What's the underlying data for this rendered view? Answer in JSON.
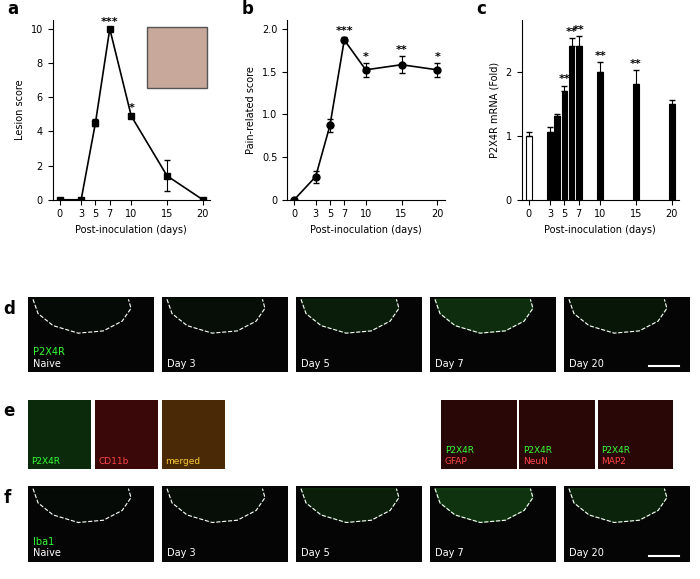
{
  "chart_data": [
    {
      "type": "line",
      "panel": "a",
      "x": [
        0,
        3,
        5,
        7,
        10,
        15,
        20
      ],
      "values": [
        0,
        0,
        4.5,
        10,
        4.9,
        1.4,
        0
      ],
      "errors": [
        0,
        0,
        0.2,
        0,
        0.1,
        0.9,
        0
      ],
      "significance": [
        null,
        null,
        null,
        "***",
        "*",
        null,
        null
      ],
      "color": "#000000",
      "marker": "square",
      "xlabel": "Post-inoculation (days)",
      "ylabel": "Lesion score",
      "xlim": [
        -1,
        21
      ],
      "xticks": [
        0,
        3,
        5,
        7,
        10,
        15,
        20
      ],
      "ylim": [
        0,
        10.5
      ],
      "yticks": [
        0,
        2,
        4,
        6,
        8,
        10
      ]
    },
    {
      "type": "line",
      "panel": "b",
      "x": [
        0,
        3,
        5,
        7,
        10,
        15,
        20
      ],
      "values": [
        0,
        0.27,
        0.87,
        1.87,
        1.52,
        1.58,
        1.52
      ],
      "errors": [
        0,
        0.07,
        0.08,
        0.03,
        0.08,
        0.1,
        0.08
      ],
      "significance": [
        null,
        null,
        null,
        "***",
        "*",
        "**",
        "*"
      ],
      "color": "#000000",
      "marker": "circle",
      "xlabel": "Post-inoculation (days)",
      "ylabel": "Pain-related score",
      "xlim": [
        -1,
        21
      ],
      "xticks": [
        0,
        3,
        5,
        7,
        10,
        15,
        20
      ],
      "ylim": [
        0,
        2.1
      ],
      "yticks": [
        0,
        0.5,
        {
          "value": 1.0,
          "label": "1.0"
        },
        1.5,
        {
          "value": 2.0,
          "label": "2.0"
        }
      ]
    },
    {
      "type": "bar",
      "panel": "c",
      "x": [
        0,
        3,
        4,
        5,
        6,
        7,
        10,
        15,
        20
      ],
      "values": [
        1.0,
        1.05,
        1.3,
        1.7,
        2.4,
        2.4,
        2.0,
        1.8,
        1.5
      ],
      "errors": [
        0.05,
        0.08,
        0.03,
        0.08,
        0.12,
        0.15,
        0.15,
        0.22,
        0.05
      ],
      "significance": [
        null,
        null,
        null,
        "**",
        "**",
        "**",
        "**",
        "**",
        null
      ],
      "colors": [
        "#ffffff",
        "#000000",
        "#000000",
        "#000000",
        "#000000",
        "#000000",
        "#000000",
        "#000000",
        "#000000"
      ],
      "xlabel": "Post-inoculation (days)",
      "ylabel": "P2X4R mRNA (Fold)",
      "xlim": [
        -1,
        21
      ],
      "xticks": [
        0,
        3,
        5,
        7,
        10,
        15,
        20
      ],
      "ylim": [
        0,
        2.8
      ],
      "yticks": [
        0,
        1,
        2
      ]
    }
  ],
  "image_panels": {
    "d": {
      "panel": "d",
      "stain": "P2X4R",
      "labels": [
        "Naive",
        "Day 3",
        "Day 5",
        "Day 7",
        "Day 20"
      ]
    },
    "e": {
      "panel": "e",
      "single": [
        "P2X4R",
        "CD11b",
        "merged"
      ],
      "double": [
        [
          "P2X4R",
          "GFAP"
        ],
        [
          "P2X4R",
          "NeuN"
        ],
        [
          "P2X4R",
          "MAP2"
        ]
      ]
    },
    "f": {
      "panel": "f",
      "stain": "Iba1",
      "labels": [
        "Naive",
        "Day 3",
        "Day 5",
        "Day 7",
        "Day 20"
      ]
    }
  }
}
